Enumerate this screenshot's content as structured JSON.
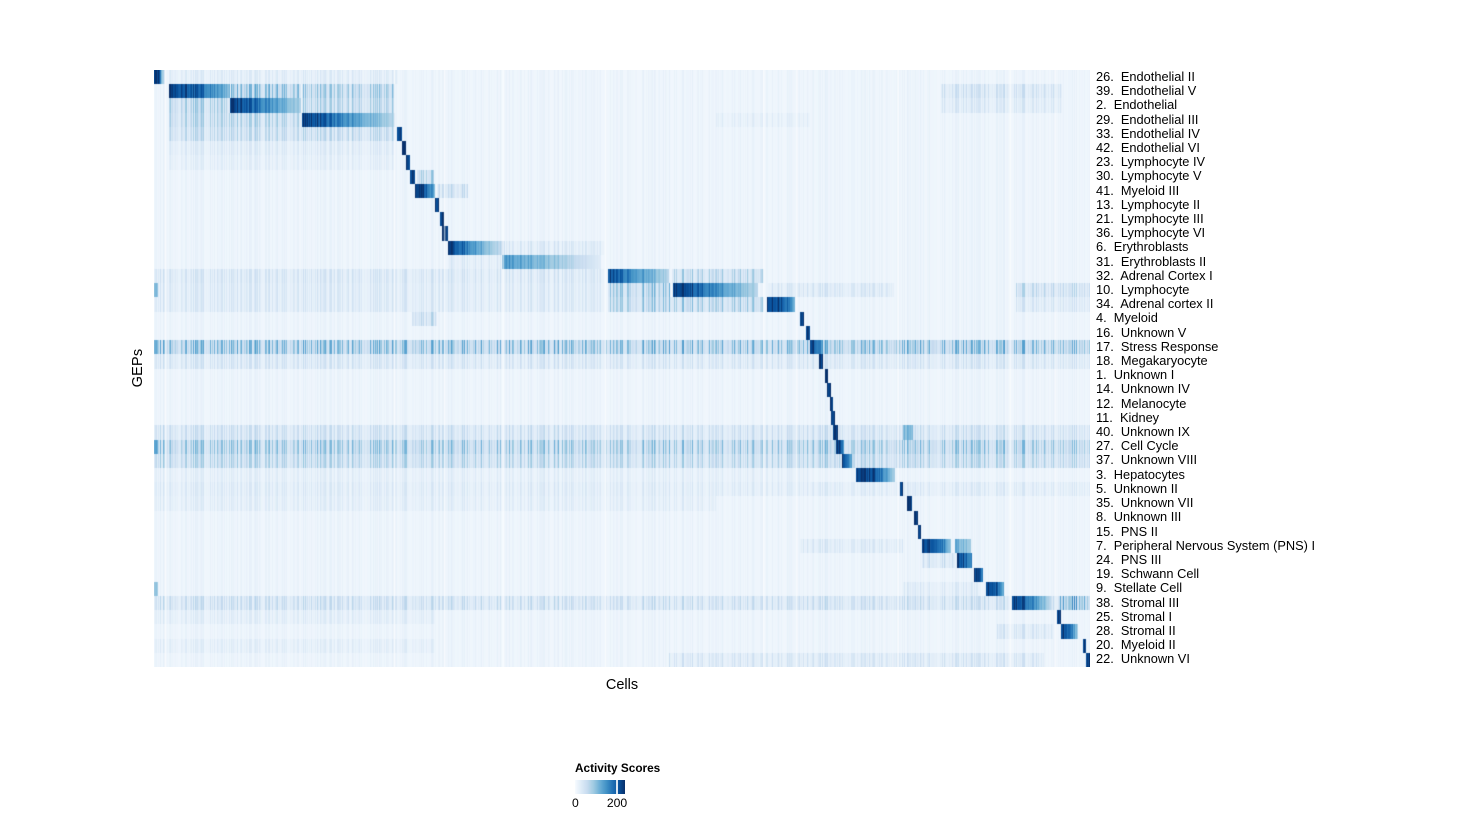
{
  "axes": {
    "x_label": "Cells",
    "y_label": "GEPs"
  },
  "legend": {
    "title": "Activity Scores",
    "min_label": "0",
    "tick_label": "200",
    "tick_frac": 0.84,
    "gradient": [
      "#f7fbff",
      "#deebf7",
      "#c6dbef",
      "#9ecae1",
      "#6baed6",
      "#4292c6",
      "#2171b5",
      "#08519c",
      "#08306b"
    ]
  },
  "chart_data": {
    "type": "heatmap",
    "title": "",
    "xlabel": "Cells",
    "ylabel": "GEPs",
    "legend_title": "Activity Scores",
    "colorbar_ticks": [
      0,
      200
    ],
    "colormap": "Blues",
    "colormap_rgb": [
      [
        247,
        251,
        255
      ],
      [
        222,
        235,
        247
      ],
      [
        198,
        219,
        239
      ],
      [
        158,
        202,
        225
      ],
      [
        107,
        174,
        214
      ],
      [
        66,
        146,
        198
      ],
      [
        33,
        113,
        181
      ],
      [
        8,
        81,
        156
      ],
      [
        8,
        48,
        107
      ]
    ],
    "background_value": 0.035,
    "column_gaps": [
      0.012,
      0.257,
      0.3105,
      0.373,
      0.4825,
      0.6515,
      0.687,
      0.795,
      0.915,
      0.963
    ],
    "rows": [
      {
        "label": "26.  Endothelial II",
        "blocks": [
          [
            0.0,
            0.006,
            1,
            1
          ],
          [
            0.006,
            0.011,
            0.65,
            0.15
          ]
        ],
        "streaks": [
          [
            0.015,
            0.26,
            0.07
          ]
        ]
      },
      {
        "label": "39.  Endothelial V",
        "blocks": [
          [
            0.015,
            0.05,
            1,
            0.78
          ],
          [
            0.05,
            0.081,
            0.78,
            0.45
          ]
        ],
        "streaks": [
          [
            0.082,
            0.156,
            0.4
          ],
          [
            0.158,
            0.257,
            0.32
          ],
          [
            0.84,
            0.97,
            0.15
          ]
        ]
      },
      {
        "label": "2.  Endothelial",
        "blocks": [
          [
            0.081,
            0.112,
            1,
            0.72
          ],
          [
            0.112,
            0.156,
            0.72,
            0.35
          ]
        ],
        "streaks": [
          [
            0.015,
            0.08,
            0.3
          ],
          [
            0.158,
            0.257,
            0.27
          ],
          [
            0.84,
            0.97,
            0.1
          ]
        ]
      },
      {
        "label": "29.  Endothelial III",
        "blocks": [
          [
            0.158,
            0.2,
            1,
            0.68
          ],
          [
            0.2,
            0.257,
            0.68,
            0.3
          ]
        ],
        "streaks": [
          [
            0.015,
            0.156,
            0.27
          ],
          [
            0.6,
            0.7,
            0.05
          ]
        ]
      },
      {
        "label": "33.  Endothelial IV",
        "blocks": [
          [
            0.2595,
            0.2645,
            1,
            1
          ]
        ],
        "streaks": [
          [
            0.015,
            0.257,
            0.22
          ]
        ]
      },
      {
        "label": "42.  Endothelial VI",
        "blocks": [
          [
            0.2648,
            0.2692,
            1,
            1
          ]
        ],
        "streaks": [
          [
            0.015,
            0.257,
            0.08
          ]
        ]
      },
      {
        "label": "23.  Lymphocyte IV",
        "blocks": [
          [
            0.2692,
            0.2728,
            1,
            1
          ]
        ],
        "streaks": [
          [
            0.015,
            0.257,
            0.05
          ]
        ]
      },
      {
        "label": "30.  Lymphocyte V",
        "blocks": [
          [
            0.2728,
            0.2778,
            1,
            1
          ]
        ],
        "streaks": [
          [
            0.2806,
            0.2984,
            0.3
          ]
        ]
      },
      {
        "label": "41.  Myeloid III",
        "blocks": [
          [
            0.2778,
            0.286,
            1,
            1
          ],
          [
            0.286,
            0.3002,
            1,
            0.45
          ]
        ],
        "streaks": [
          [
            0.302,
            0.335,
            0.18
          ]
        ]
      },
      {
        "label": "13.  Lymphocyte II",
        "blocks": [
          [
            0.3002,
            0.3037,
            1,
            1
          ]
        ],
        "streaks": []
      },
      {
        "label": "21.  Lymphocyte III",
        "blocks": [
          [
            0.3048,
            0.3091,
            1,
            1
          ]
        ],
        "streaks": []
      },
      {
        "label": "36.  Lymphocyte VI",
        "blocks": [
          [
            0.3073,
            0.3133,
            1,
            1
          ]
        ],
        "streaks": []
      },
      {
        "label": "6.  Erythroblasts",
        "blocks": [
          [
            0.3133,
            0.34,
            1,
            0.62
          ],
          [
            0.34,
            0.374,
            0.62,
            0.22
          ]
        ],
        "streaks": [
          [
            0.376,
            0.48,
            0.1
          ]
        ]
      },
      {
        "label": "31.  Erythroblasts II",
        "blocks": [
          [
            0.3715,
            0.43,
            0.62,
            0.38
          ],
          [
            0.43,
            0.477,
            0.38,
            0.12
          ]
        ],
        "streaks": [
          [
            0.315,
            0.37,
            0.08
          ]
        ]
      },
      {
        "label": "32.  Adrenal Cortex I",
        "blocks": [
          [
            0.485,
            0.505,
            0.92,
            0.72
          ],
          [
            0.505,
            0.55,
            0.72,
            0.3
          ]
        ],
        "streaks": [
          [
            0.553,
            0.651,
            0.28
          ],
          [
            0.0,
            0.48,
            0.12
          ]
        ]
      },
      {
        "label": "10.  Lymphocyte",
        "blocks": [
          [
            0.0,
            0.004,
            0.45,
            0.45
          ],
          [
            0.5535,
            0.568,
            1,
            1
          ],
          [
            0.568,
            0.645,
            0.92,
            0.3
          ]
        ],
        "streaks": [
          [
            0.485,
            0.551,
            0.36
          ],
          [
            0.655,
            0.79,
            0.12
          ],
          [
            0.92,
            1.0,
            0.22
          ],
          [
            0.0,
            0.48,
            0.1
          ]
        ]
      },
      {
        "label": "34.  Adrenal cortex II",
        "blocks": [
          [
            0.654,
            0.672,
            1,
            0.88
          ],
          [
            0.672,
            0.684,
            0.88,
            0.5
          ]
        ],
        "streaks": [
          [
            0.485,
            0.651,
            0.32
          ],
          [
            0.0,
            0.48,
            0.1
          ],
          [
            0.92,
            1.0,
            0.12
          ]
        ]
      },
      {
        "label": "4.  Myeloid",
        "blocks": [
          [
            0.6898,
            0.6938,
            1,
            1
          ]
        ],
        "streaks": [
          [
            0.275,
            0.302,
            0.22
          ]
        ]
      },
      {
        "label": "16.  Unknown V",
        "blocks": [
          [
            0.696,
            0.7,
            1,
            1
          ]
        ],
        "streaks": []
      },
      {
        "label": "17.  Stress Response",
        "blocks": [
          [
            0.0,
            0.004,
            0.5,
            0.5
          ],
          [
            0.7005,
            0.7145,
            1,
            0.55
          ]
        ],
        "streaks": [
          [
            0.0,
            1.0,
            0.42
          ]
        ]
      },
      {
        "label": "18.  Megakaryocyte",
        "blocks": [
          [
            0.7097,
            0.7144,
            1,
            1
          ]
        ],
        "streaks": [
          [
            0.0,
            1.0,
            0.13
          ]
        ]
      },
      {
        "label": "1.  Unknown I",
        "blocks": [
          [
            0.7161,
            0.7196,
            1,
            1
          ]
        ],
        "streaks": []
      },
      {
        "label": "14.  Unknown IV",
        "blocks": [
          [
            0.719,
            0.7225,
            1,
            1
          ]
        ],
        "streaks": []
      },
      {
        "label": "12.  Melanocyte",
        "blocks": [
          [
            0.7213,
            0.7248,
            1,
            1
          ]
        ],
        "streaks": []
      },
      {
        "label": "11.  Kidney",
        "blocks": [
          [
            0.7232,
            0.727,
            1,
            1
          ]
        ],
        "streaks": []
      },
      {
        "label": "40.  Unknown IX",
        "blocks": [
          [
            0.7252,
            0.73,
            1,
            1
          ],
          [
            0.8,
            0.81,
            0.45,
            0.45
          ]
        ],
        "streaks": [
          [
            0.0,
            1.0,
            0.17
          ]
        ]
      },
      {
        "label": "27.  Cell Cycle",
        "blocks": [
          [
            0.0,
            0.004,
            0.55,
            0.55
          ],
          [
            0.7278,
            0.7318,
            1,
            1
          ],
          [
            0.7318,
            0.7365,
            1,
            0.62
          ]
        ],
        "streaks": [
          [
            0.0,
            1.0,
            0.35
          ]
        ]
      },
      {
        "label": "37.  Unknown VIII",
        "blocks": [
          [
            0.7345,
            0.74,
            1,
            0.85
          ],
          [
            0.74,
            0.7455,
            0.85,
            0.5
          ]
        ],
        "streaks": [
          [
            0.0,
            1.0,
            0.26
          ]
        ]
      },
      {
        "label": "3.  Hepatocytes",
        "blocks": [
          [
            0.7495,
            0.77,
            1,
            0.88
          ],
          [
            0.77,
            0.7915,
            0.88,
            0.35
          ]
        ],
        "streaks": [
          [
            0.0,
            0.7,
            0.05
          ]
        ]
      },
      {
        "label": "5.  Unknown II",
        "blocks": [
          [
            0.7968,
            0.8002,
            1,
            1
          ]
        ],
        "streaks": [
          [
            0.0,
            1.0,
            0.08
          ]
        ]
      },
      {
        "label": "35.  Unknown VII",
        "blocks": [
          [
            0.804,
            0.8095,
            1,
            1
          ]
        ],
        "streaks": [
          [
            0.0,
            0.6,
            0.06
          ]
        ]
      },
      {
        "label": "8.  Unknown III",
        "blocks": [
          [
            0.8118,
            0.8155,
            1,
            1
          ]
        ],
        "streaks": []
      },
      {
        "label": "15.  PNS II",
        "blocks": [
          [
            0.8155,
            0.8185,
            1,
            1
          ]
        ],
        "streaks": []
      },
      {
        "label": "7.  Peripheral Nervous System (PNS) I",
        "blocks": [
          [
            0.82,
            0.838,
            1,
            0.85
          ],
          [
            0.838,
            0.8505,
            0.85,
            0.42
          ],
          [
            0.8556,
            0.8718,
            0.5,
            0.38
          ]
        ],
        "streaks": [
          [
            0.69,
            0.8,
            0.1
          ]
        ]
      },
      {
        "label": "24.  PNS III",
        "blocks": [
          [
            0.8576,
            0.8736,
            1,
            0.62
          ]
        ],
        "streaks": [
          [
            0.82,
            0.855,
            0.18
          ]
        ]
      },
      {
        "label": "19.  Schwann Cell",
        "blocks": [
          [
            0.8753,
            0.8854,
            1,
            0.72
          ]
        ],
        "streaks": []
      },
      {
        "label": "9.  Stellate Cell",
        "blocks": [
          [
            0.0,
            0.004,
            0.4,
            0.4
          ],
          [
            0.8886,
            0.897,
            1,
            0.95
          ],
          [
            0.897,
            0.908,
            0.95,
            0.45
          ]
        ],
        "streaks": [
          [
            0.8,
            0.88,
            0.08
          ]
        ]
      },
      {
        "label": "38.  Stromal III",
        "blocks": [
          [
            0.9163,
            0.936,
            1,
            0.72
          ],
          [
            0.936,
            0.9573,
            0.72,
            0.3
          ]
        ],
        "streaks": [
          [
            0.0,
            1.0,
            0.18
          ],
          [
            0.9662,
            0.9983,
            0.38
          ]
        ]
      },
      {
        "label": "25.  Stromal I",
        "blocks": [
          [
            0.9644,
            0.968,
            1,
            1
          ]
        ],
        "streaks": [
          [
            0.0,
            0.3,
            0.06
          ]
        ]
      },
      {
        "label": "28.  Stromal II",
        "blocks": [
          [
            0.9687,
            0.978,
            1,
            0.8
          ],
          [
            0.978,
            0.9865,
            0.8,
            0.35
          ]
        ],
        "streaks": [
          [
            0.9,
            0.96,
            0.12
          ]
        ]
      },
      {
        "label": "20.  Myeloid II",
        "blocks": [
          [
            0.9922,
            0.9957,
            1,
            1
          ]
        ],
        "streaks": [
          [
            0.0,
            0.3,
            0.05
          ]
        ]
      },
      {
        "label": "22.  Unknown VI",
        "blocks": [
          [
            0.9954,
            1.0,
            1,
            1
          ]
        ],
        "streaks": [
          [
            0.55,
            0.95,
            0.12
          ]
        ]
      }
    ]
  }
}
